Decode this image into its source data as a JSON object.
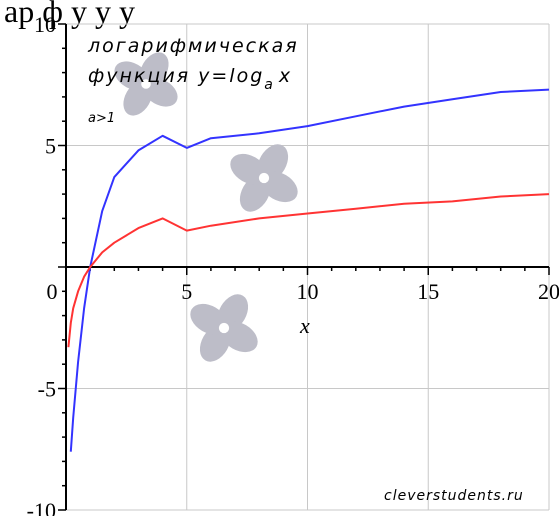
{
  "top_text": "ар    ф          у         у у",
  "chart_data": {
    "type": "line",
    "title": "логарифмическая",
    "subtitle_prefix": "функция  y=log",
    "subtitle_sub": "a",
    "subtitle_suffix": "x",
    "condition": "a>1",
    "xlabel": "x",
    "ylabel": "",
    "xlim": [
      0,
      20
    ],
    "ylim": [
      -10,
      10
    ],
    "x_ticks": [
      0,
      5,
      10,
      15,
      20
    ],
    "y_ticks": [
      -10,
      -5,
      5,
      10
    ],
    "grid": true,
    "series": [
      {
        "color": "#3333ff",
        "x": [
          0.2,
          0.3,
          0.5,
          0.75,
          1,
          1.5,
          2,
          3,
          4,
          5,
          6,
          8,
          10,
          12,
          14,
          16,
          18,
          20
        ],
        "y": [
          -7.6,
          -6.2,
          -3.9,
          -1.7,
          0,
          2.3,
          3.7,
          4.8,
          5.4,
          4.9,
          5.3,
          5.5,
          5.8,
          6.2,
          6.6,
          6.9,
          7.2,
          7.3
        ]
      },
      {
        "color": "#ff3333",
        "x": [
          0.1,
          0.2,
          0.3,
          0.5,
          0.75,
          1,
          1.5,
          2,
          3,
          4,
          5,
          6,
          8,
          10,
          12,
          14,
          16,
          18,
          20
        ],
        "y": [
          -3.3,
          -2.3,
          -1.7,
          -1.0,
          -0.4,
          0,
          0.6,
          1.0,
          1.6,
          2.0,
          1.5,
          1.7,
          2.0,
          2.2,
          2.4,
          2.6,
          2.7,
          2.9,
          3.0
        ]
      }
    ],
    "watermark": "cleverstudents.ru"
  }
}
